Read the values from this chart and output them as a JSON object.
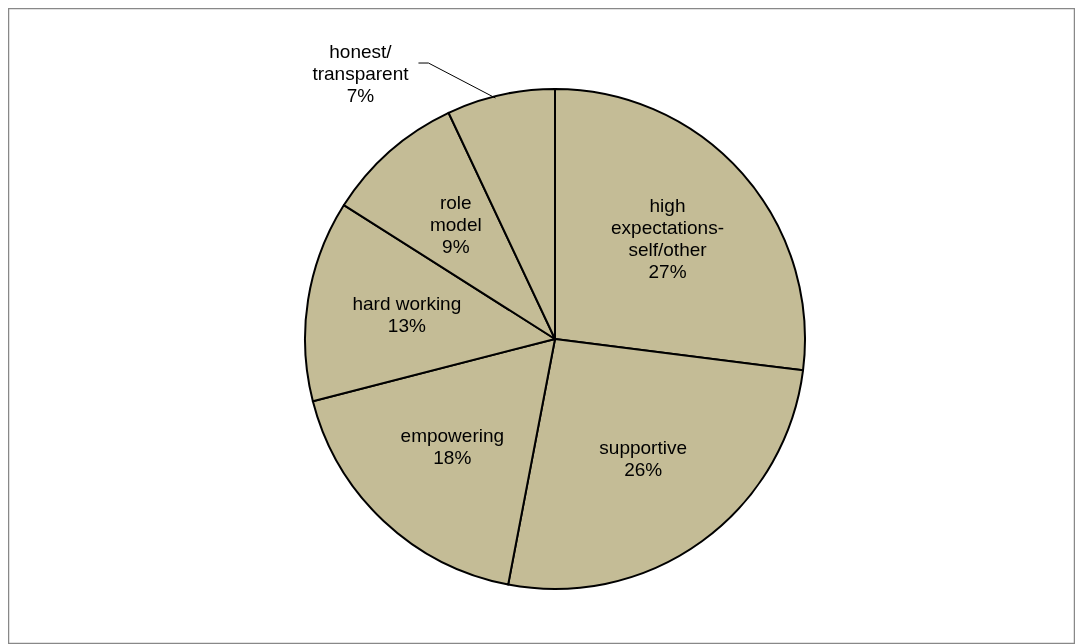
{
  "chart_data": {
    "type": "pie",
    "categories": [
      "high\nexpectations-\nself/other",
      "supportive",
      "empowering",
      "hard working",
      "role\nmodel",
      "honest/\ntransparent"
    ],
    "values": [
      27,
      26,
      18,
      13,
      9,
      7
    ],
    "value_labels": [
      "27%",
      "26%",
      "18%",
      "13%",
      "9%",
      "7%"
    ],
    "colors": [
      "#c4bc96",
      "#c4bc96",
      "#c4bc96",
      "#c4bc96",
      "#c4bc96",
      "#c4bc96"
    ]
  }
}
